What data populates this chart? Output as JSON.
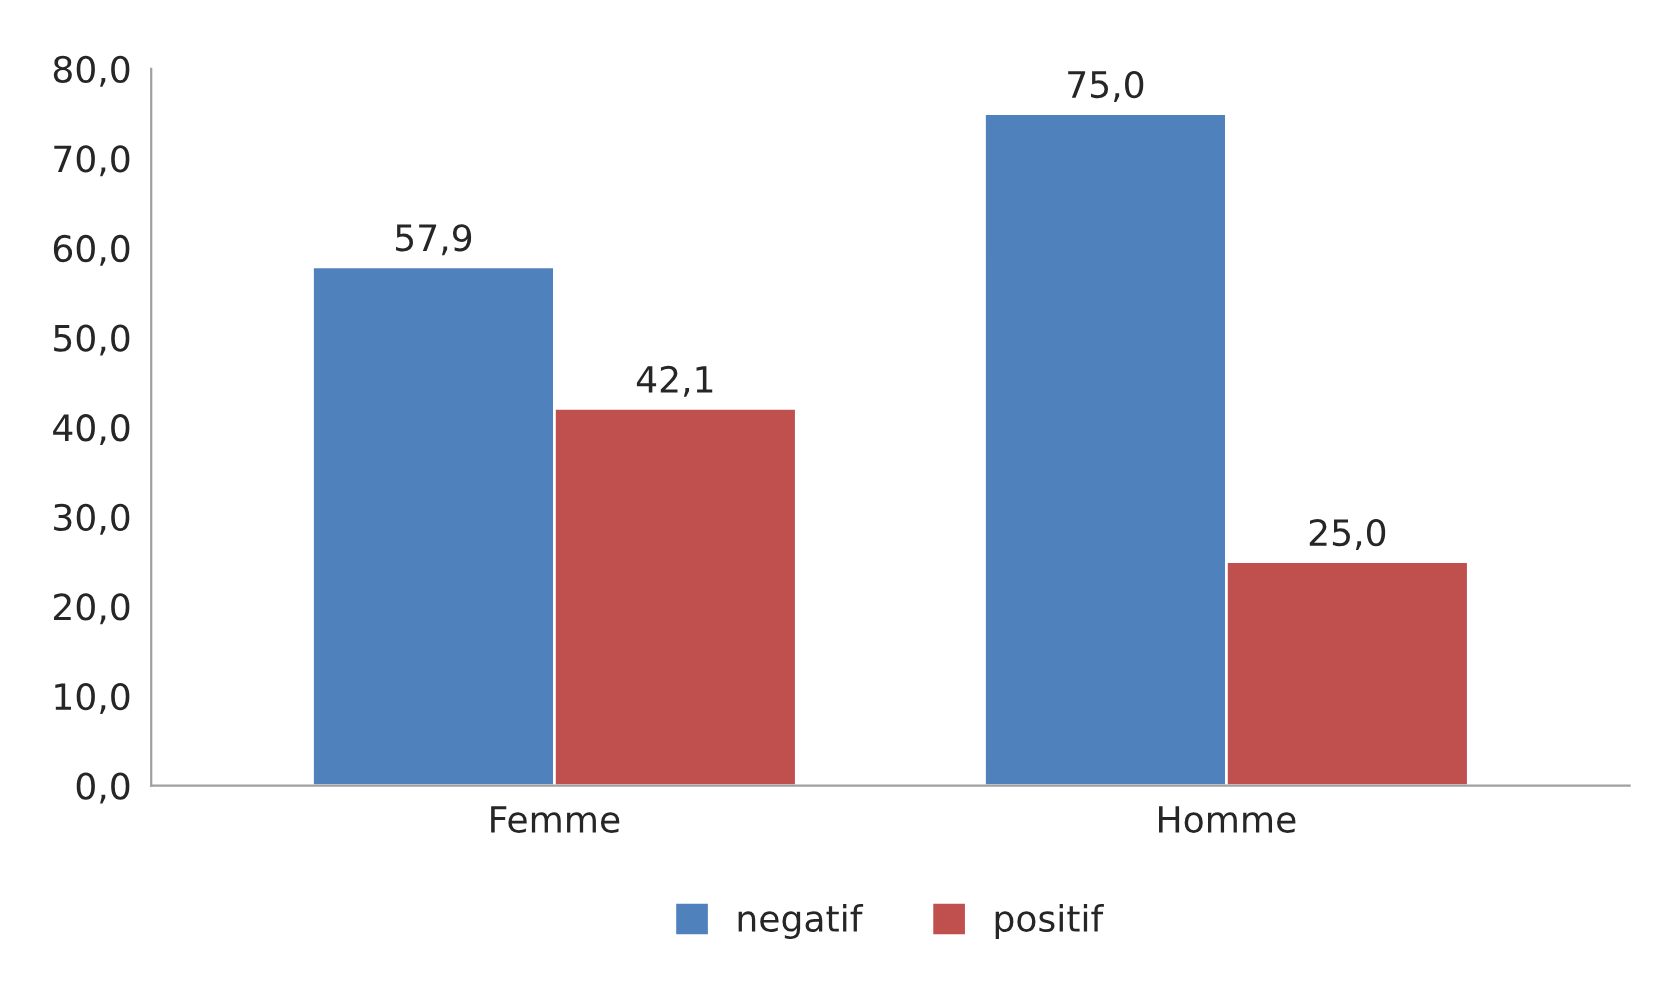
{
  "chart_data": {
    "type": "bar",
    "categories": [
      "Femme",
      "Homme"
    ],
    "series": [
      {
        "name": "negatif",
        "color": "#4f81bd",
        "values": [
          57.9,
          75.0
        ],
        "value_labels": [
          "57,9",
          "75,0"
        ]
      },
      {
        "name": "positif",
        "color": "#c0504d",
        "values": [
          42.1,
          25.0
        ],
        "value_labels": [
          "42,1",
          "25,0"
        ]
      }
    ],
    "ylim": [
      0,
      80
    ],
    "yticks": [
      {
        "value": 0,
        "label": "0,0"
      },
      {
        "value": 10,
        "label": "10,0"
      },
      {
        "value": 20,
        "label": "20,0"
      },
      {
        "value": 30,
        "label": "30,0"
      },
      {
        "value": 40,
        "label": "40,0"
      },
      {
        "value": 50,
        "label": "50,0"
      },
      {
        "value": 60,
        "label": "60,0"
      },
      {
        "value": 70,
        "label": "70,0"
      },
      {
        "value": 80,
        "label": "80,0"
      }
    ],
    "grid": false,
    "legend": "bottom"
  }
}
